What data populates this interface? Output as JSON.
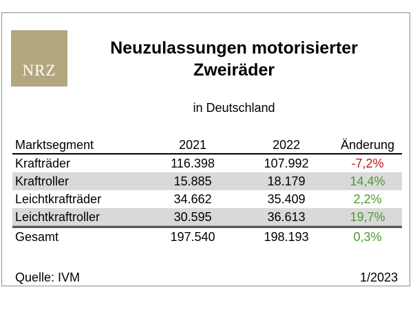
{
  "logo": {
    "text": "NRZ"
  },
  "title_line1": "Neuzulassungen motorisierter",
  "title_line2": "Zweiräder",
  "subtitle": "in Deutschland",
  "source": "Quelle: IVM",
  "date": "1/2023",
  "colors": {
    "negative": "#c0141c",
    "positive": "#4a9a2c",
    "row_shade": "#d9d9d9",
    "logo_bg": "#b3a77f"
  },
  "chart_data": {
    "type": "table",
    "columns": [
      "Marktsegment",
      "2021",
      "2022",
      "Änderung"
    ],
    "rows": [
      {
        "segment": "Krafträder",
        "y2021": "116.398",
        "y2022": "107.992",
        "change": "-7,2%",
        "change_sign": "negative",
        "shaded": false
      },
      {
        "segment": "Kraftroller",
        "y2021": "15.885",
        "y2022": "18.179",
        "change": "14,4%",
        "change_sign": "positive",
        "shaded": true
      },
      {
        "segment": "Leichtkrafträder",
        "y2021": "34.662",
        "y2022": "35.409",
        "change": "2,2%",
        "change_sign": "positive",
        "shaded": false
      },
      {
        "segment": "Leichtkraftroller",
        "y2021": "30.595",
        "y2022": "36.613",
        "change": "19,7%",
        "change_sign": "positive",
        "shaded": true
      }
    ],
    "total": {
      "segment": "Gesamt",
      "y2021": "197.540",
      "y2022": "198.193",
      "change": "0,3%",
      "change_sign": "positive"
    }
  }
}
